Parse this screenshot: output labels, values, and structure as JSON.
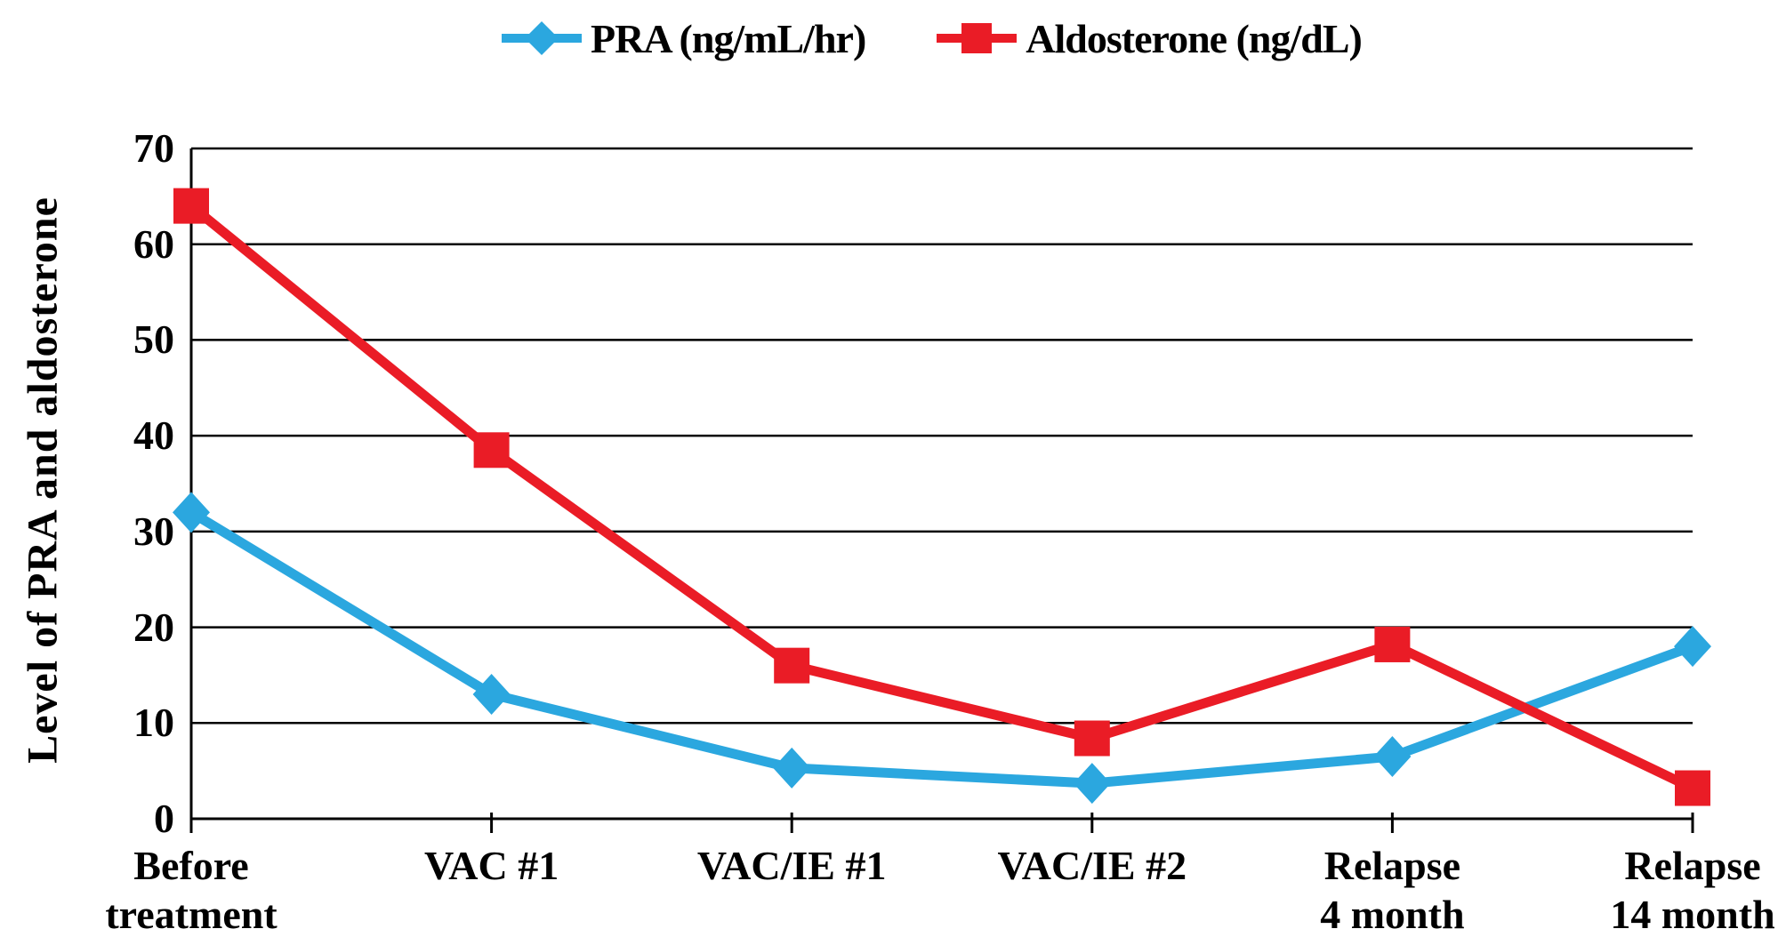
{
  "chart_data": {
    "type": "line",
    "title": "",
    "xlabel": "",
    "ylabel": "Level of PRA and aldosterone",
    "ylim": [
      0,
      70
    ],
    "yticks": [
      0,
      10,
      20,
      30,
      40,
      50,
      60,
      70
    ],
    "grid": "horizontal",
    "legend_position": "top",
    "background": "#FFFFFF",
    "axis_color": "#000000",
    "categories": [
      "Before treatment",
      "VAC #1",
      "VAC/IE #1",
      "VAC/IE #2",
      "Relapse 4 month",
      "Relapse 14 month"
    ],
    "category_label_lines": [
      [
        "Before",
        "treatment"
      ],
      [
        "VAC #1"
      ],
      [
        "VAC/IE #1"
      ],
      [
        "VAC/IE #2"
      ],
      [
        "Relapse",
        "4 month"
      ],
      [
        "Relapse",
        "14 month"
      ]
    ],
    "series": [
      {
        "name": "PRA (ng/mL/hr)",
        "color": "#2BA7DF",
        "marker": "diamond",
        "values": [
          32,
          13,
          5.3,
          3.7,
          6.5,
          18
        ]
      },
      {
        "name": "Aldosterone (ng/dL)",
        "color": "#EA1C26",
        "marker": "square",
        "values": [
          64,
          38.5,
          16,
          8.4,
          18.2,
          3.2
        ]
      }
    ]
  }
}
